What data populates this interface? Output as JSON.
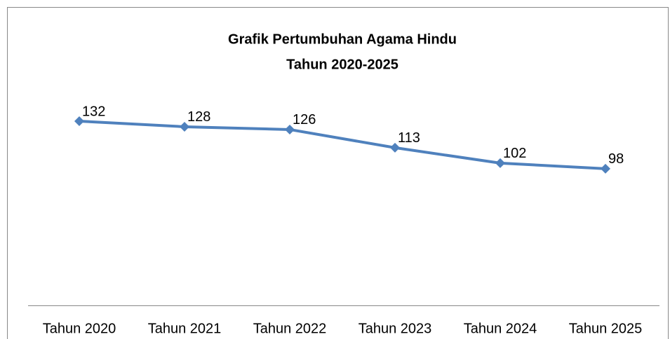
{
  "chart_data": {
    "type": "line",
    "title": [
      "Grafik Pertumbuhan Agama Hindu",
      "Tahun 2020-2025"
    ],
    "categories": [
      "Tahun 2020",
      "Tahun 2021",
      "Tahun 2022",
      "Tahun 2023",
      "Tahun 2024",
      "Tahun 2025"
    ],
    "series": [
      {
        "name": null,
        "color": "#4f81bd",
        "values": [
          132,
          128,
          126,
          113,
          102,
          98
        ]
      }
    ],
    "ylim": [
      0,
      140
    ]
  }
}
